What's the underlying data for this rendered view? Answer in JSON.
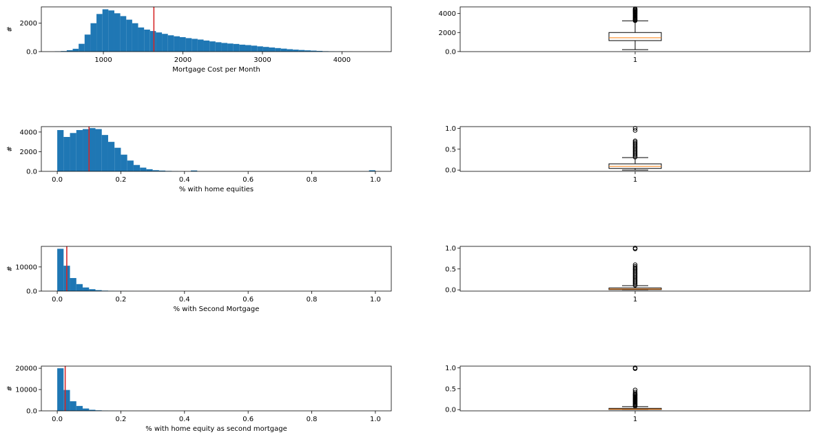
{
  "colors": {
    "bar": "#1f77b4",
    "mean_line": "#d62728",
    "box_median": "#ff7f0e",
    "frame": "#000000"
  },
  "chart_data": [
    {
      "type": "bar",
      "subtype": "histogram",
      "xlabel": "Mortgage Cost per Month",
      "ylabel": "#",
      "xlim": [
        220,
        4620
      ],
      "ylim": [
        0,
        3150
      ],
      "xticks": [
        1000,
        2000,
        3000,
        4000
      ],
      "yticks": [
        0,
        2000
      ],
      "bin_start": 390,
      "bin_width": 74.8,
      "values": [
        20,
        40,
        100,
        200,
        550,
        1200,
        2000,
        2650,
        2980,
        2900,
        2700,
        2500,
        2250,
        2000,
        1700,
        1550,
        1450,
        1350,
        1250,
        1150,
        1080,
        1020,
        950,
        900,
        850,
        780,
        720,
        660,
        610,
        570,
        540,
        490,
        460,
        420,
        370,
        330,
        290,
        250,
        210,
        170,
        140,
        115,
        90,
        70,
        50,
        30,
        20,
        12,
        8,
        5
      ],
      "mean_line": 1635
    },
    {
      "type": "box",
      "xtick_labels": [
        "1"
      ],
      "ylim": [
        -10,
        4700
      ],
      "yticks": [
        0,
        2000,
        4000
      ],
      "whisker_low": 200,
      "q1": 1150,
      "median": 1450,
      "q3": 2000,
      "whisker_high": 3230,
      "outliers": [
        3250,
        3320,
        3400,
        3480,
        3560,
        3650,
        3740,
        3830,
        3920,
        4010,
        4100,
        4180,
        4260,
        4340,
        4420,
        4500
      ]
    },
    {
      "type": "bar",
      "subtype": "histogram",
      "xlabel": "% with home equities",
      "ylabel": "#",
      "xlim": [
        -0.05,
        1.05
      ],
      "ylim": [
        0,
        4550
      ],
      "xticks": [
        0.0,
        0.2,
        0.4,
        0.6,
        0.8,
        1.0
      ],
      "yticks": [
        0,
        2000,
        4000
      ],
      "bin_start": 0,
      "bin_width": 0.02,
      "values": [
        4200,
        3500,
        3900,
        4200,
        4300,
        4400,
        4300,
        3700,
        3000,
        2400,
        1700,
        1100,
        650,
        380,
        220,
        120,
        80,
        45,
        25,
        10,
        6,
        90,
        4,
        3,
        2,
        2,
        1,
        1,
        1,
        1,
        1,
        1,
        1,
        1,
        1,
        1,
        1,
        1,
        1,
        1,
        1,
        1,
        1,
        1,
        1,
        1,
        1,
        1,
        1,
        110
      ],
      "mean_line": 0.1
    },
    {
      "type": "box",
      "xtick_labels": [
        "1"
      ],
      "ylim": [
        -0.03,
        1.04
      ],
      "yticks": [
        0.0,
        0.5,
        1.0
      ],
      "whisker_low": 0.0,
      "q1": 0.04,
      "median": 0.09,
      "q3": 0.15,
      "whisker_high": 0.3,
      "outliers": [
        0.31,
        0.34,
        0.37,
        0.4,
        0.43,
        0.46,
        0.49,
        0.52,
        0.55,
        0.58,
        0.61,
        0.64,
        0.67,
        0.7,
        0.95,
        1.0
      ]
    },
    {
      "type": "bar",
      "subtype": "histogram",
      "xlabel": "% with Second Mortgage",
      "ylabel": "#",
      "xlim": [
        -0.05,
        1.05
      ],
      "ylim": [
        0,
        18500
      ],
      "xticks": [
        0.0,
        0.2,
        0.4,
        0.6,
        0.8,
        1.0
      ],
      "yticks": [
        0,
        10000
      ],
      "bin_start": 0,
      "bin_width": 0.02,
      "values": [
        17500,
        10500,
        5400,
        2900,
        1500,
        800,
        400,
        200,
        100,
        50,
        30,
        20,
        15,
        10,
        8,
        6,
        5,
        4,
        3,
        3,
        2,
        2,
        2,
        2,
        1,
        1,
        1,
        1,
        1,
        1,
        1,
        1,
        1,
        1,
        1,
        1,
        1,
        1,
        1,
        1,
        1,
        1,
        1,
        1,
        1,
        1,
        1,
        1,
        1,
        20
      ],
      "mean_line": 0.03
    },
    {
      "type": "box",
      "xtick_labels": [
        "1"
      ],
      "ylim": [
        -0.03,
        1.04
      ],
      "yticks": [
        0.0,
        0.5,
        1.0
      ],
      "whisker_low": 0.0,
      "q1": 0.005,
      "median": 0.02,
      "q3": 0.045,
      "whisker_high": 0.1,
      "outliers": [
        0.11,
        0.14,
        0.17,
        0.2,
        0.23,
        0.26,
        0.29,
        0.32,
        0.35,
        0.38,
        0.41,
        0.44,
        0.47,
        0.5,
        0.53,
        0.56,
        0.6,
        0.98,
        1.0
      ]
    },
    {
      "type": "bar",
      "subtype": "histogram",
      "xlabel": "% with home equity as second mortgage",
      "ylabel": "#",
      "xlim": [
        -0.05,
        1.05
      ],
      "ylim": [
        0,
        21000
      ],
      "xticks": [
        0.0,
        0.2,
        0.4,
        0.6,
        0.8,
        1.0
      ],
      "yticks": [
        0,
        10000,
        20000
      ],
      "bin_start": 0,
      "bin_width": 0.02,
      "values": [
        20000,
        9800,
        4500,
        2300,
        1100,
        500,
        250,
        120,
        60,
        30,
        20,
        12,
        8,
        6,
        5,
        4,
        3,
        2,
        2,
        2,
        1,
        1,
        1,
        1,
        1,
        1,
        1,
        1,
        1,
        1,
        1,
        1,
        1,
        1,
        1,
        1,
        1,
        1,
        1,
        1,
        1,
        1,
        1,
        1,
        1,
        1,
        1,
        1,
        1,
        15
      ],
      "mean_line": 0.025
    },
    {
      "type": "box",
      "xtick_labels": [
        "1"
      ],
      "ylim": [
        -0.03,
        1.04
      ],
      "yticks": [
        0.0,
        0.5,
        1.0
      ],
      "whisker_low": 0.0,
      "q1": 0.003,
      "median": 0.012,
      "q3": 0.03,
      "whisker_high": 0.07,
      "outliers": [
        0.08,
        0.1,
        0.12,
        0.14,
        0.16,
        0.18,
        0.2,
        0.22,
        0.24,
        0.26,
        0.28,
        0.3,
        0.32,
        0.34,
        0.36,
        0.38,
        0.42,
        0.47,
        0.98,
        1.0
      ]
    }
  ]
}
